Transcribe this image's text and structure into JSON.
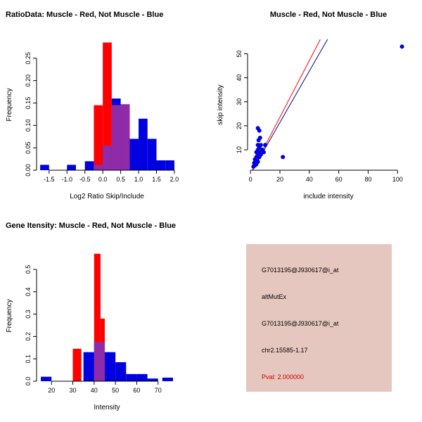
{
  "chart_data": [
    {
      "id": "ratio-histogram",
      "type": "histogram",
      "title": "RatioData: Muscle - Red, Not Muscle - Blue",
      "title_align": "left",
      "xlabel": "Log2 Ratio Skip/Include",
      "ylabel": "Frequency",
      "xlim": [
        -1.85,
        2.08
      ],
      "ylim": [
        0,
        0.292
      ],
      "xticks": [
        -1.5,
        -1.0,
        -0.5,
        0.0,
        0.5,
        1.0,
        1.5,
        2.0
      ],
      "xtick_labels": [
        "-1.5",
        "-1.0",
        "-0.5",
        "0.0",
        "0.5",
        "1.0",
        "1.5",
        "2.0"
      ],
      "yticks": [
        0,
        0.05,
        0.1,
        0.15,
        0.2,
        0.25
      ],
      "ytick_labels": [
        "0.00",
        "0.05",
        "0.10",
        "0.15",
        "0.20",
        "0.25"
      ],
      "legend_note": "red = Muscle, blue = Not Muscle, purple = overlap",
      "series": [
        {
          "name": "not-muscle",
          "color": "#0000E0",
          "bars": [
            [
              -1.75,
              -1.5,
              0.012
            ],
            [
              -1.0,
              -0.75,
              0.012
            ],
            [
              -0.5,
              -0.25,
              0.02
            ],
            [
              -0.25,
              0,
              0.012
            ],
            [
              0,
              0.25,
              0.055
            ],
            [
              0.25,
              0.5,
              0.16
            ],
            [
              0.5,
              0.75,
              0.147
            ],
            [
              0.75,
              1.0,
              0.07
            ],
            [
              1.0,
              1.25,
              0.115
            ],
            [
              1.25,
              1.5,
              0.07
            ],
            [
              1.5,
              1.75,
              0.022
            ],
            [
              1.75,
              2.0,
              0.022
            ]
          ]
        },
        {
          "name": "muscle",
          "color": "#FF0000",
          "bars": [
            [
              -0.25,
              0,
              0.145
            ],
            [
              0,
              0.25,
              0.285
            ],
            [
              0.25,
              0.5,
              0.145
            ],
            [
              0.5,
              0.75,
              0.147
            ]
          ]
        },
        {
          "name": "overlap",
          "color": "#8E2BA8",
          "bars": [
            [
              -0.25,
              0,
              0.012
            ],
            [
              0,
              0.25,
              0.055
            ],
            [
              0.25,
              0.5,
              0.145
            ],
            [
              0.5,
              0.75,
              0.147
            ]
          ]
        }
      ]
    },
    {
      "id": "intensity-scatter",
      "type": "scatter",
      "title": "Muscle - Red, Not Muscle - Blue",
      "title_align": "center",
      "xlabel": "include intensity",
      "ylabel": "skip intensity",
      "xlim": [
        -2,
        108
      ],
      "ylim": [
        1.5,
        56
      ],
      "xticks": [
        0,
        20,
        40,
        60,
        80,
        100
      ],
      "xtick_labels": [
        "0",
        "20",
        "40",
        "60",
        "80",
        "100"
      ],
      "yticks": [
        10,
        20,
        30,
        40,
        50
      ],
      "ytick_labels": [
        "10",
        "20",
        "30",
        "40",
        "50"
      ],
      "points": {
        "color": "#0000E0",
        "r": 3,
        "xy": [
          [
            2,
            3
          ],
          [
            2.5,
            4.5
          ],
          [
            3,
            3.5
          ],
          [
            3,
            6
          ],
          [
            3.5,
            5
          ],
          [
            4,
            4
          ],
          [
            4,
            7
          ],
          [
            4,
            9
          ],
          [
            4.5,
            6
          ],
          [
            5,
            5
          ],
          [
            5,
            8
          ],
          [
            5,
            10
          ],
          [
            5,
            12
          ],
          [
            5,
            19
          ],
          [
            5.5,
            14
          ],
          [
            6,
            7
          ],
          [
            6,
            9
          ],
          [
            6,
            11
          ],
          [
            6,
            18
          ],
          [
            6.5,
            15
          ],
          [
            7,
            8
          ],
          [
            7,
            12
          ],
          [
            8,
            10
          ],
          [
            9,
            9
          ],
          [
            10,
            12
          ],
          [
            22,
            7
          ],
          [
            103,
            53
          ]
        ]
      },
      "lines": [
        {
          "name": "muscle-fit",
          "slope": 1.18,
          "intercept": 0,
          "color": "#FF0000"
        },
        {
          "name": "not-muscle-fit",
          "slope": 1.07,
          "intercept": 0,
          "color": "#00008B"
        }
      ]
    },
    {
      "id": "gene-histogram",
      "type": "histogram",
      "title": "Gene Itensity: Muscle - Red, Not Muscle - Blue",
      "title_align": "left",
      "xlabel": "Intensity",
      "ylabel": "Frequency",
      "xlim": [
        13,
        79
      ],
      "ylim": [
        0,
        0.585
      ],
      "xticks": [
        20,
        30,
        40,
        50,
        60,
        70
      ],
      "xtick_labels": [
        "20",
        "30",
        "40",
        "50",
        "60",
        "70"
      ],
      "yticks": [
        0,
        0.1,
        0.2,
        0.3,
        0.4,
        0.5
      ],
      "ytick_labels": [
        "0.0",
        "0.1",
        "0.2",
        "0.3",
        "0.4",
        "0.5"
      ],
      "legend_note": "red = Muscle, blue = Not Muscle, purple = overlap",
      "series": [
        {
          "name": "not-muscle",
          "color": "#0000E0",
          "bars": [
            [
              15,
              20,
              0.02
            ],
            [
              35,
              40,
              0.13
            ],
            [
              40,
              45,
              0.175
            ],
            [
              45,
              50,
              0.13
            ],
            [
              50,
              55,
              0.085
            ],
            [
              55,
              60,
              0.032
            ],
            [
              60,
              65,
              0.032
            ],
            [
              65,
              70,
              0.012
            ],
            [
              72,
              77,
              0.016
            ]
          ]
        },
        {
          "name": "muscle",
          "color": "#FF0000",
          "bars": [
            [
              30,
              34,
              0.145
            ],
            [
              40,
              43,
              0.57
            ],
            [
              43,
              45,
              0.28
            ]
          ]
        },
        {
          "name": "overlap",
          "color": "#8E2BA8",
          "bars": [
            [
              40,
              45,
              0.175
            ]
          ]
        }
      ]
    }
  ],
  "info_panel": {
    "bg": "#E5C7BF",
    "lines": [
      "G7013195@J930617@i_at",
      "altMutEx",
      "G7013195@J930617@i_at",
      "chr2.15585-1.17",
      "Pval: 2.000000"
    ],
    "pval_color": "#CC0000"
  }
}
